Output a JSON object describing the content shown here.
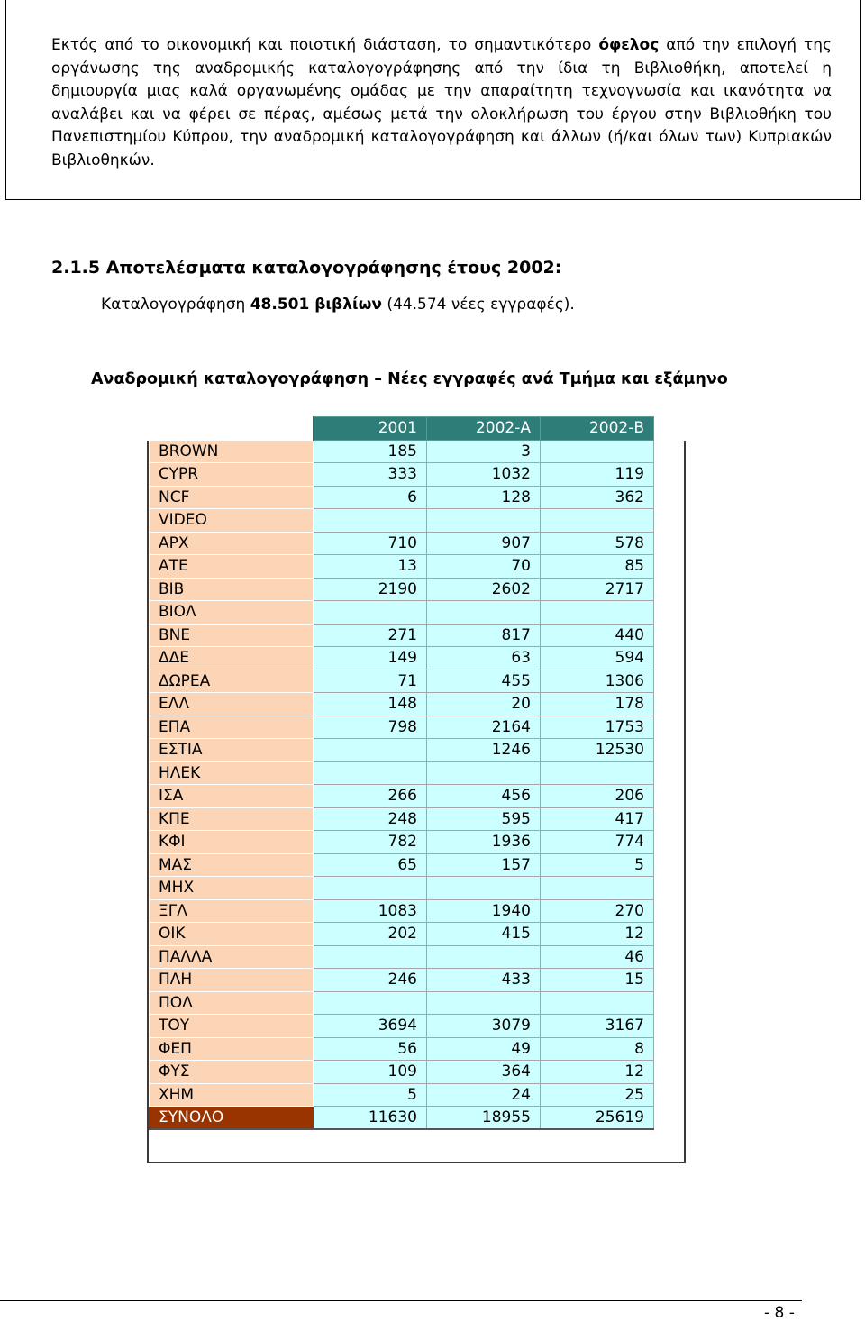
{
  "intro_box": {
    "text_before": "Εκτός από το οικονομική και ποιοτική διάσταση, το σημαντικότερο ",
    "text_bold": "όφελος",
    "text_after": " από την επιλογή της οργάνωσης της αναδρομικής καταλογογράφησης από την ίδια τη Βιβλιοθήκη, αποτελεί η δημιουργία μιας καλά οργανωμένης ομάδας με την απαραίτητη τεχνογνωσία και ικανότητα να αναλάβει και να φέρει σε πέρας, αμέσως μετά την ολοκλήρωση του έργου στην Βιβλιοθήκη του Πανεπιστημίου Κύπρου, την αναδρομική καταλογογράφηση και άλλων (ή/και όλων των) Κυπριακών Βιβλιοθηκών."
  },
  "section": {
    "heading": "2.1.5 Αποτελέσματα καταλογογράφησης έτους 2002:",
    "summary_prefix": "Καταλογογράφηση ",
    "summary_bold": "48.501 βιβλίων",
    "summary_suffix": " (44.574 νέες εγγραφές)."
  },
  "table": {
    "title": "Αναδρομική καταλογογράφηση – Νέες εγγραφές ανά Τμήμα και εξάμηνο",
    "columns": [
      "2001",
      "2002-Α",
      "2002-Β"
    ],
    "rows": [
      {
        "name": "BROWN",
        "values": [
          "185",
          "3",
          ""
        ]
      },
      {
        "name": "CYPR",
        "values": [
          "333",
          "1032",
          "119"
        ]
      },
      {
        "name": "NCF",
        "values": [
          "6",
          "128",
          "362"
        ]
      },
      {
        "name": "VIDEO",
        "values": [
          "",
          "",
          ""
        ]
      },
      {
        "name": "ΑΡΧ",
        "values": [
          "710",
          "907",
          "578"
        ]
      },
      {
        "name": "ΑΤΕ",
        "values": [
          "13",
          "70",
          "85"
        ]
      },
      {
        "name": "ΒΙΒ",
        "values": [
          "2190",
          "2602",
          "2717"
        ]
      },
      {
        "name": "ΒΙΟΛ",
        "values": [
          "",
          "",
          ""
        ]
      },
      {
        "name": "ΒΝΕ",
        "values": [
          "271",
          "817",
          "440"
        ]
      },
      {
        "name": "ΔΔΕ",
        "values": [
          "149",
          "63",
          "594"
        ]
      },
      {
        "name": "ΔΩΡΕΑ",
        "values": [
          "71",
          "455",
          "1306"
        ]
      },
      {
        "name": "ΕΛΛ",
        "values": [
          "148",
          "20",
          "178"
        ]
      },
      {
        "name": "ΕΠΑ",
        "values": [
          "798",
          "2164",
          "1753"
        ]
      },
      {
        "name": "ΕΣΤΙΑ",
        "values": [
          "",
          "1246",
          "12530"
        ]
      },
      {
        "name": "ΗΛΕΚ",
        "values": [
          "",
          "",
          ""
        ]
      },
      {
        "name": "ΙΣΑ",
        "values": [
          "266",
          "456",
          "206"
        ]
      },
      {
        "name": "ΚΠΕ",
        "values": [
          "248",
          "595",
          "417"
        ]
      },
      {
        "name": "ΚΦΙ",
        "values": [
          "782",
          "1936",
          "774"
        ]
      },
      {
        "name": "ΜΑΣ",
        "values": [
          "65",
          "157",
          "5"
        ]
      },
      {
        "name": "ΜΗΧ",
        "values": [
          "",
          "",
          ""
        ]
      },
      {
        "name": "ΞΓΛ",
        "values": [
          "1083",
          "1940",
          "270"
        ]
      },
      {
        "name": "ΟΙΚ",
        "values": [
          "202",
          "415",
          "12"
        ]
      },
      {
        "name": "ΠΑΛΛΑ",
        "values": [
          "",
          "",
          "46"
        ]
      },
      {
        "name": "ΠΛΗ",
        "values": [
          "246",
          "433",
          "15"
        ]
      },
      {
        "name": "ΠΟΛ",
        "values": [
          "",
          "",
          ""
        ]
      },
      {
        "name": "ΤΟΥ",
        "values": [
          "3694",
          "3079",
          "3167"
        ]
      },
      {
        "name": "ΦΕΠ",
        "values": [
          "56",
          "49",
          "8"
        ]
      },
      {
        "name": "ΦΥΣ",
        "values": [
          "109",
          "364",
          "12"
        ]
      },
      {
        "name": "ΧΗΜ",
        "values": [
          "5",
          "24",
          "25"
        ]
      }
    ],
    "total": {
      "name": "ΣΥΝΟΛΟ",
      "values": [
        "11630",
        "18955",
        "25619"
      ]
    },
    "colors": {
      "header_bg": "#2f7d79",
      "name_bg": "#fbd5b5",
      "value_bg": "#ccffff",
      "total_bg": "#993300"
    }
  },
  "footer": {
    "page_number": "- 8 -"
  }
}
